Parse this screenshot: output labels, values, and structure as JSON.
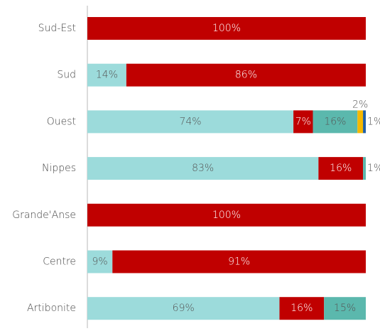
{
  "chart_data": {
    "type": "bar",
    "orientation": "horizontal",
    "stacked": true,
    "categories": [
      "Sud-Est",
      "Sud",
      "Ouest",
      "Nippes",
      "Grande'Anse",
      "Centre",
      "Artibonite"
    ],
    "xlim": [
      0,
      100
    ],
    "series": [
      {
        "color": "#9cdbdb",
        "values": [
          0,
          14,
          74,
          83,
          0,
          9,
          69
        ],
        "value_labels": [
          null,
          "14%",
          "74%",
          "83%",
          null,
          "9%",
          "69%"
        ]
      },
      {
        "color": "#c00000",
        "values": [
          100,
          86,
          7,
          16,
          100,
          91,
          16
        ],
        "value_labels": [
          "100%",
          "86%",
          "7%",
          "16%",
          "100%",
          "91%",
          "16%"
        ]
      },
      {
        "color": "#5bb8ad",
        "values": [
          0,
          0,
          16,
          1,
          0,
          0,
          15
        ],
        "value_labels": [
          null,
          null,
          "16%",
          "1%",
          null,
          null,
          "15%"
        ]
      },
      {
        "color": "#f5b800",
        "values": [
          0,
          0,
          2,
          0,
          0,
          0,
          0
        ],
        "value_labels": [
          null,
          null,
          "2%",
          null,
          null,
          null,
          null
        ]
      },
      {
        "color": "#1f5fa8",
        "values": [
          0,
          0,
          1,
          0,
          0,
          0,
          0
        ],
        "value_labels": [
          null,
          null,
          "1%",
          null,
          null,
          null,
          null
        ]
      }
    ]
  }
}
